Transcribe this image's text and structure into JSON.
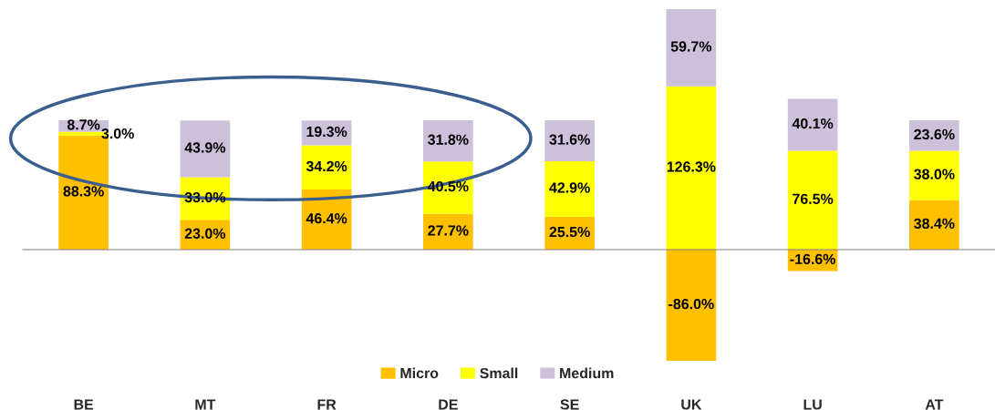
{
  "chart_data": {
    "type": "bar",
    "stacked": true,
    "legend": "bottom",
    "grid": false,
    "categories": [
      "BE",
      "MT",
      "FR",
      "DE",
      "SE",
      "UK",
      "LU",
      "AT"
    ],
    "series": [
      {
        "name": "Micro",
        "color": "#ffc000",
        "values": [
          88.3,
          23.0,
          46.4,
          27.7,
          25.5,
          -86.0,
          -16.6,
          38.4
        ],
        "value_labels": [
          "88.3%",
          "23.0%",
          "46.4%",
          "27.7%",
          "25.5%",
          "-86.0%",
          "-16.6%",
          "38.4%"
        ]
      },
      {
        "name": "Small",
        "color": "#ffff00",
        "values": [
          3.0,
          33.0,
          34.2,
          40.5,
          42.9,
          126.3,
          76.5,
          38.0
        ],
        "value_labels": [
          "3.0%",
          "33.0%",
          "34.2%",
          "40.5%",
          "42.9%",
          "126.3%",
          "76.5%",
          "38.0%"
        ]
      },
      {
        "name": "Medium",
        "color": "#ccc0da",
        "values": [
          8.7,
          43.9,
          19.3,
          31.8,
          31.6,
          59.7,
          40.1,
          23.6
        ],
        "value_labels": [
          "8.7%",
          "43.9%",
          "19.3%",
          "31.8%",
          "31.6%",
          "59.7%",
          "40.1%",
          "23.6%"
        ]
      }
    ]
  }
}
